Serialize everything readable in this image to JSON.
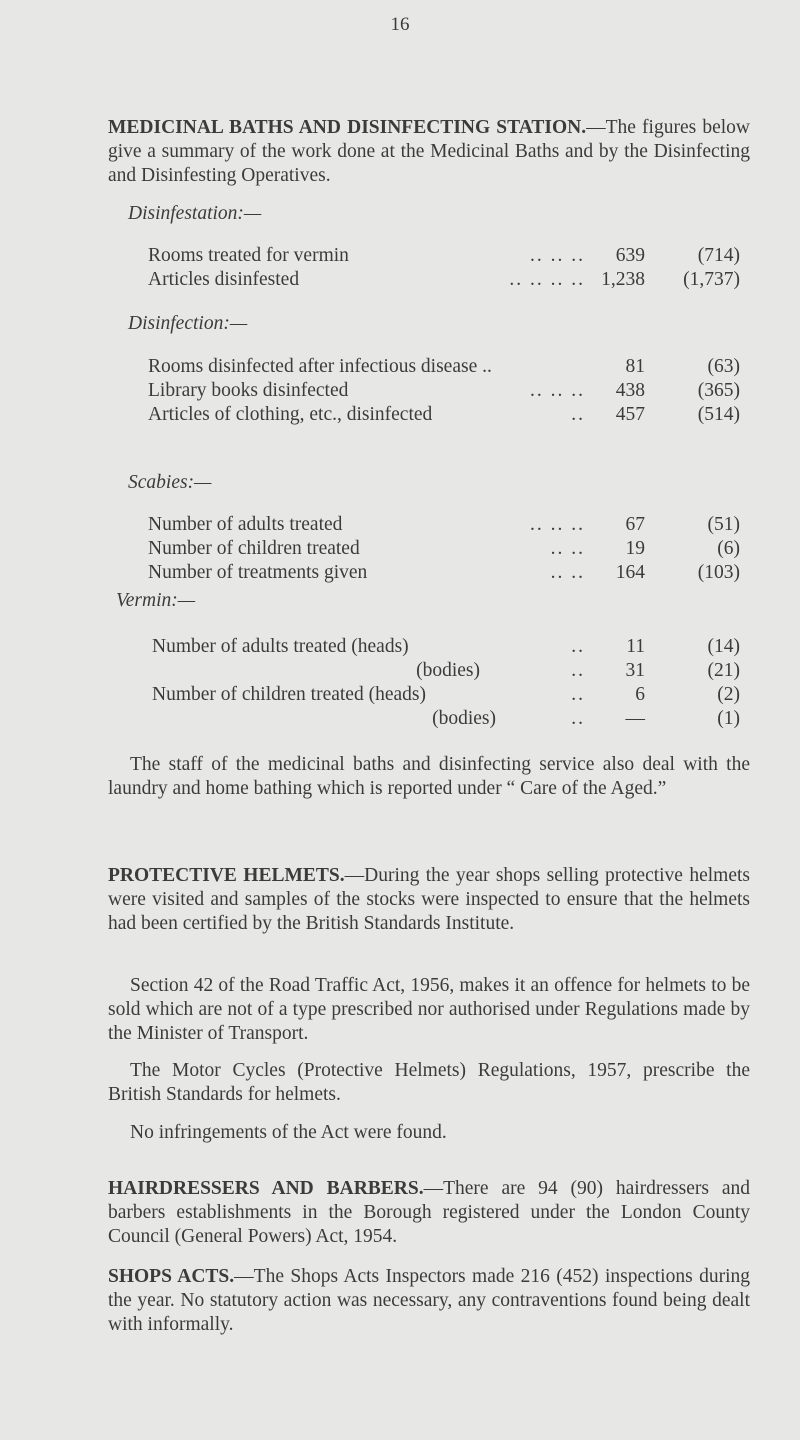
{
  "page_number": "16",
  "medicinal": {
    "heading": "MEDICINAL BATHS AND DISINFECTING STATION.",
    "text": "—The figures below give a summary of the work done at the Medicinal Baths and by the Disinfecting and Disinfesting Operatives."
  },
  "disinfestation": {
    "title": "Disinfestation:—",
    "rows": [
      {
        "label": "Rooms treated for vermin",
        "leader": "..   ..   ..",
        "value": "639",
        "previous": "(714)"
      },
      {
        "label": "Articles disinfested",
        "leader": "..   ..   ..   ..",
        "value": "1,238",
        "previous": "(1,737)"
      }
    ]
  },
  "disinfection": {
    "title": "Disinfection:—",
    "rows": [
      {
        "label": "Rooms disinfected after infectious disease ..",
        "leader": "",
        "value": "81",
        "previous": "(63)"
      },
      {
        "label": "Library books disinfected",
        "leader": "..   ..   ..",
        "value": "438",
        "previous": "(365)"
      },
      {
        "label": "Articles of clothing, etc., disinfected",
        "leader": "..",
        "value": "457",
        "previous": "(514)"
      }
    ]
  },
  "scabies": {
    "title": "Scabies:—",
    "rows": [
      {
        "label": "Number of adults treated",
        "leader": "..   ..   ..",
        "value": "67",
        "previous": "(51)"
      },
      {
        "label": "Number of children treated",
        "leader": "..   ..",
        "value": "19",
        "previous": "(6)"
      },
      {
        "label": "Number of treatments given",
        "leader": "..   ..",
        "value": "164",
        "previous": "(103)"
      }
    ]
  },
  "vermin": {
    "title": "Vermin:—",
    "rows": [
      {
        "label": "Number of adults treated (heads)",
        "leader": "..",
        "value": "11",
        "previous": "(14)"
      },
      {
        "label": "(bodies)",
        "leader": "..",
        "value": "31",
        "previous": "(21)"
      },
      {
        "label": "Number of children treated (heads)",
        "leader": "..",
        "value": "6",
        "previous": "(2)"
      },
      {
        "label": "(bodies)",
        "leader": "..",
        "value": "—",
        "previous": "(1)"
      }
    ]
  },
  "staff_paragraph": "The staff of the medicinal baths and disinfecting service also deal with the laundry and home bathing which is reported under “ Care of the Aged.”",
  "helmets": {
    "heading": "PROTECTIVE HELMETS.",
    "text": "—During the year shops selling protective helmets were visited and samples of the stocks were inspected to ensure that the helmets had been certified by the British Standards Institute.",
    "section42": "Section 42 of the Road Traffic Act, 1956, makes it an offence for helmets to be sold which are not of a type prescribed nor authorised under Regulations made by the Minister of Transport.",
    "regulations": "The Motor Cycles (Protective Helmets) Regulations, 1957, prescribe the British Standards for helmets.",
    "infringements": "No infringements of the Act were found."
  },
  "hairdressers": {
    "heading": "HAIRDRESSERS AND BARBERS.",
    "text": "—There are 94 (90) hairdressers and barbers establishments in the Borough registered under the London County Council (General Powers) Act, 1954."
  },
  "shops": {
    "heading": "SHOPS ACTS.",
    "text": "—The Shops Acts Inspectors made 216 (452) inspections during the year. No statutory action was necessary, any contraventions found being dealt with informally."
  }
}
